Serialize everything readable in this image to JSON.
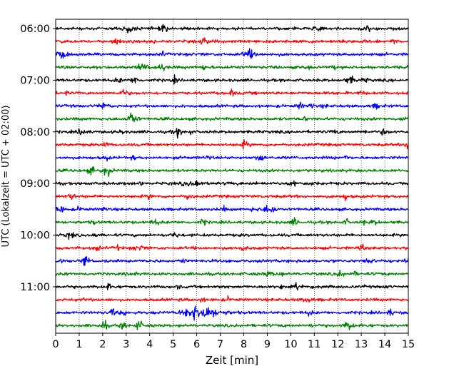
{
  "chart_data": {
    "type": "line",
    "title": "",
    "xlabel": "Zeit  [min]",
    "ylabel": "UTC (Lokalzeit = UTC + 02:00)",
    "xlim": [
      0,
      15
    ],
    "xticks": [
      "0",
      "1",
      "2",
      "3",
      "4",
      "5",
      "6",
      "7",
      "8",
      "9",
      "10",
      "11",
      "12",
      "13",
      "14",
      "15"
    ],
    "yticks": [
      "06:00",
      "07:00",
      "08:00",
      "09:00",
      "10:00",
      "11:00"
    ],
    "grid": "vertical dotted",
    "row_interval_minutes": 15,
    "row_color_cycle": [
      "#000000",
      "#ff0000",
      "#0000ff",
      "#008000"
    ],
    "rows": [
      {
        "start": "06:00",
        "color": "#000000"
      },
      {
        "start": "06:15",
        "color": "#ff0000"
      },
      {
        "start": "06:30",
        "color": "#0000ff"
      },
      {
        "start": "06:45",
        "color": "#008000"
      },
      {
        "start": "07:00",
        "color": "#000000"
      },
      {
        "start": "07:15",
        "color": "#ff0000"
      },
      {
        "start": "07:30",
        "color": "#0000ff"
      },
      {
        "start": "07:45",
        "color": "#008000"
      },
      {
        "start": "08:00",
        "color": "#000000"
      },
      {
        "start": "08:15",
        "color": "#ff0000"
      },
      {
        "start": "08:30",
        "color": "#0000ff"
      },
      {
        "start": "08:45",
        "color": "#008000"
      },
      {
        "start": "09:00",
        "color": "#000000"
      },
      {
        "start": "09:15",
        "color": "#ff0000"
      },
      {
        "start": "09:30",
        "color": "#0000ff"
      },
      {
        "start": "09:45",
        "color": "#008000"
      },
      {
        "start": "10:00",
        "color": "#000000"
      },
      {
        "start": "10:15",
        "color": "#ff0000"
      },
      {
        "start": "10:30",
        "color": "#0000ff"
      },
      {
        "start": "10:45",
        "color": "#008000"
      },
      {
        "start": "11:00",
        "color": "#000000"
      },
      {
        "start": "11:15",
        "color": "#ff0000"
      },
      {
        "start": "11:30",
        "color": "#0000ff"
      },
      {
        "start": "11:45",
        "color": "#008000"
      }
    ],
    "events": [
      {
        "row": "11:30",
        "start_min": 5.5,
        "peak_min": 6.3,
        "end_min": 7.8,
        "note": "largest burst"
      }
    ]
  }
}
